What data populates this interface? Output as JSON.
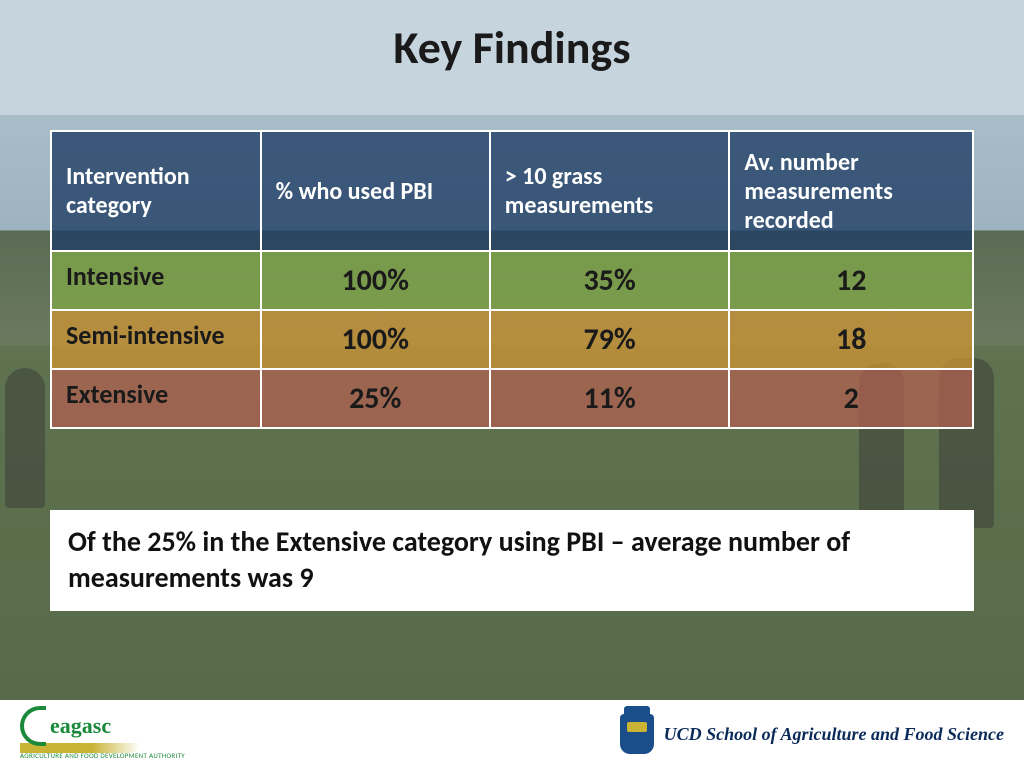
{
  "title": "Key Findings",
  "table": {
    "header_bg": "rgba(30,60,100,0.78)",
    "columns": [
      "Intervention category",
      "% who used PBI",
      "> 10 grass measurements",
      "Av. number measurements recorded"
    ],
    "rows": [
      {
        "label": "Intensive",
        "pbi": "100%",
        "gt10": "35%",
        "avg": "12",
        "bg": "rgba(130,170,70,0.72)"
      },
      {
        "label": "Semi-intensive",
        "pbi": "100%",
        "gt10": "79%",
        "avg": "18",
        "bg": "rgba(210,150,50,0.72)"
      },
      {
        "label": "Extensive",
        "pbi": "25%",
        "gt10": "11%",
        "avg": "2",
        "bg": "rgba(180,95,80,0.72)"
      }
    ]
  },
  "note": "Of the 25% in the Extensive category using PBI  – average number of measurements was 9",
  "footer": {
    "teagasc_name": "eagasc",
    "teagasc_sub": "AGRICULTURE AND FOOD DEVELOPMENT AUTHORITY",
    "ucd_text": "UCD School of Agriculture and Food Science"
  },
  "colors": {
    "title": "#1a1a1a",
    "header_text": "#ffffff",
    "cell_text": "#1a1a1a",
    "border": "#ffffff"
  }
}
